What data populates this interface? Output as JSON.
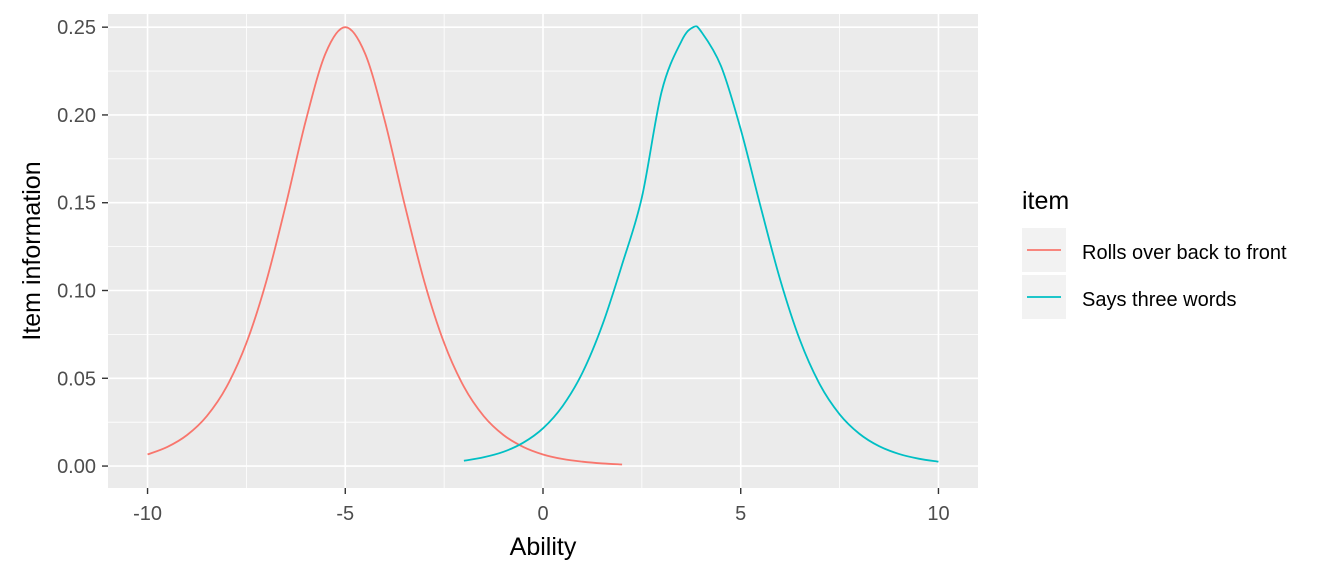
{
  "chart_data": {
    "type": "line",
    "xlabel": "Ability",
    "ylabel": "Item information",
    "xlim": [
      -11,
      11
    ],
    "ylim": [
      -0.0125,
      0.2575
    ],
    "x_ticks": [
      -10,
      -5,
      0,
      5,
      10
    ],
    "x_tick_labels": [
      "-10",
      "-5",
      "0",
      "5",
      "10"
    ],
    "y_ticks": [
      0.0,
      0.05,
      0.1,
      0.15,
      0.2,
      0.25
    ],
    "y_tick_labels": [
      "0.00",
      "0.05",
      "0.10",
      "0.15",
      "0.20",
      "0.25"
    ],
    "grid": true,
    "legend": {
      "title": "item",
      "position": "right"
    },
    "series": [
      {
        "name": "Rolls over back to front",
        "color": "#F8766D",
        "x": [
          -10,
          -9.5,
          -9,
          -8.5,
          -8,
          -7.5,
          -7,
          -6.5,
          -6,
          -5.5,
          -5,
          -4.5,
          -4,
          -3.5,
          -3,
          -2.5,
          -2,
          -1.5,
          -1,
          -0.5,
          0,
          0.5,
          1,
          1.5,
          2
        ],
        "y": [
          0.0066,
          0.0109,
          0.0177,
          0.0285,
          0.0452,
          0.0701,
          0.105,
          0.1491,
          0.1966,
          0.235,
          0.25,
          0.235,
          0.1966,
          0.1491,
          0.105,
          0.0701,
          0.0452,
          0.0285,
          0.0177,
          0.0109,
          0.0066,
          0.004,
          0.0025,
          0.0015,
          0.0009
        ]
      },
      {
        "name": "Says three words",
        "color": "#00BFC4",
        "x": [
          -2,
          -1.5,
          -1,
          -0.5,
          0,
          0.5,
          1,
          1.5,
          2,
          2.5,
          3,
          3.5,
          3.8,
          4,
          4.5,
          5,
          5.5,
          6,
          6.5,
          7,
          7.5,
          8,
          8.5,
          9,
          9.5,
          10
        ],
        "y": [
          0.003,
          0.005,
          0.0081,
          0.0133,
          0.0215,
          0.0343,
          0.0533,
          0.0803,
          0.1148,
          0.153,
          0.2133,
          0.242,
          0.25,
          0.2475,
          0.2279,
          0.1918,
          0.148,
          0.106,
          0.0716,
          0.0465,
          0.0295,
          0.0184,
          0.0113,
          0.0069,
          0.0042,
          0.0025
        ]
      }
    ]
  }
}
